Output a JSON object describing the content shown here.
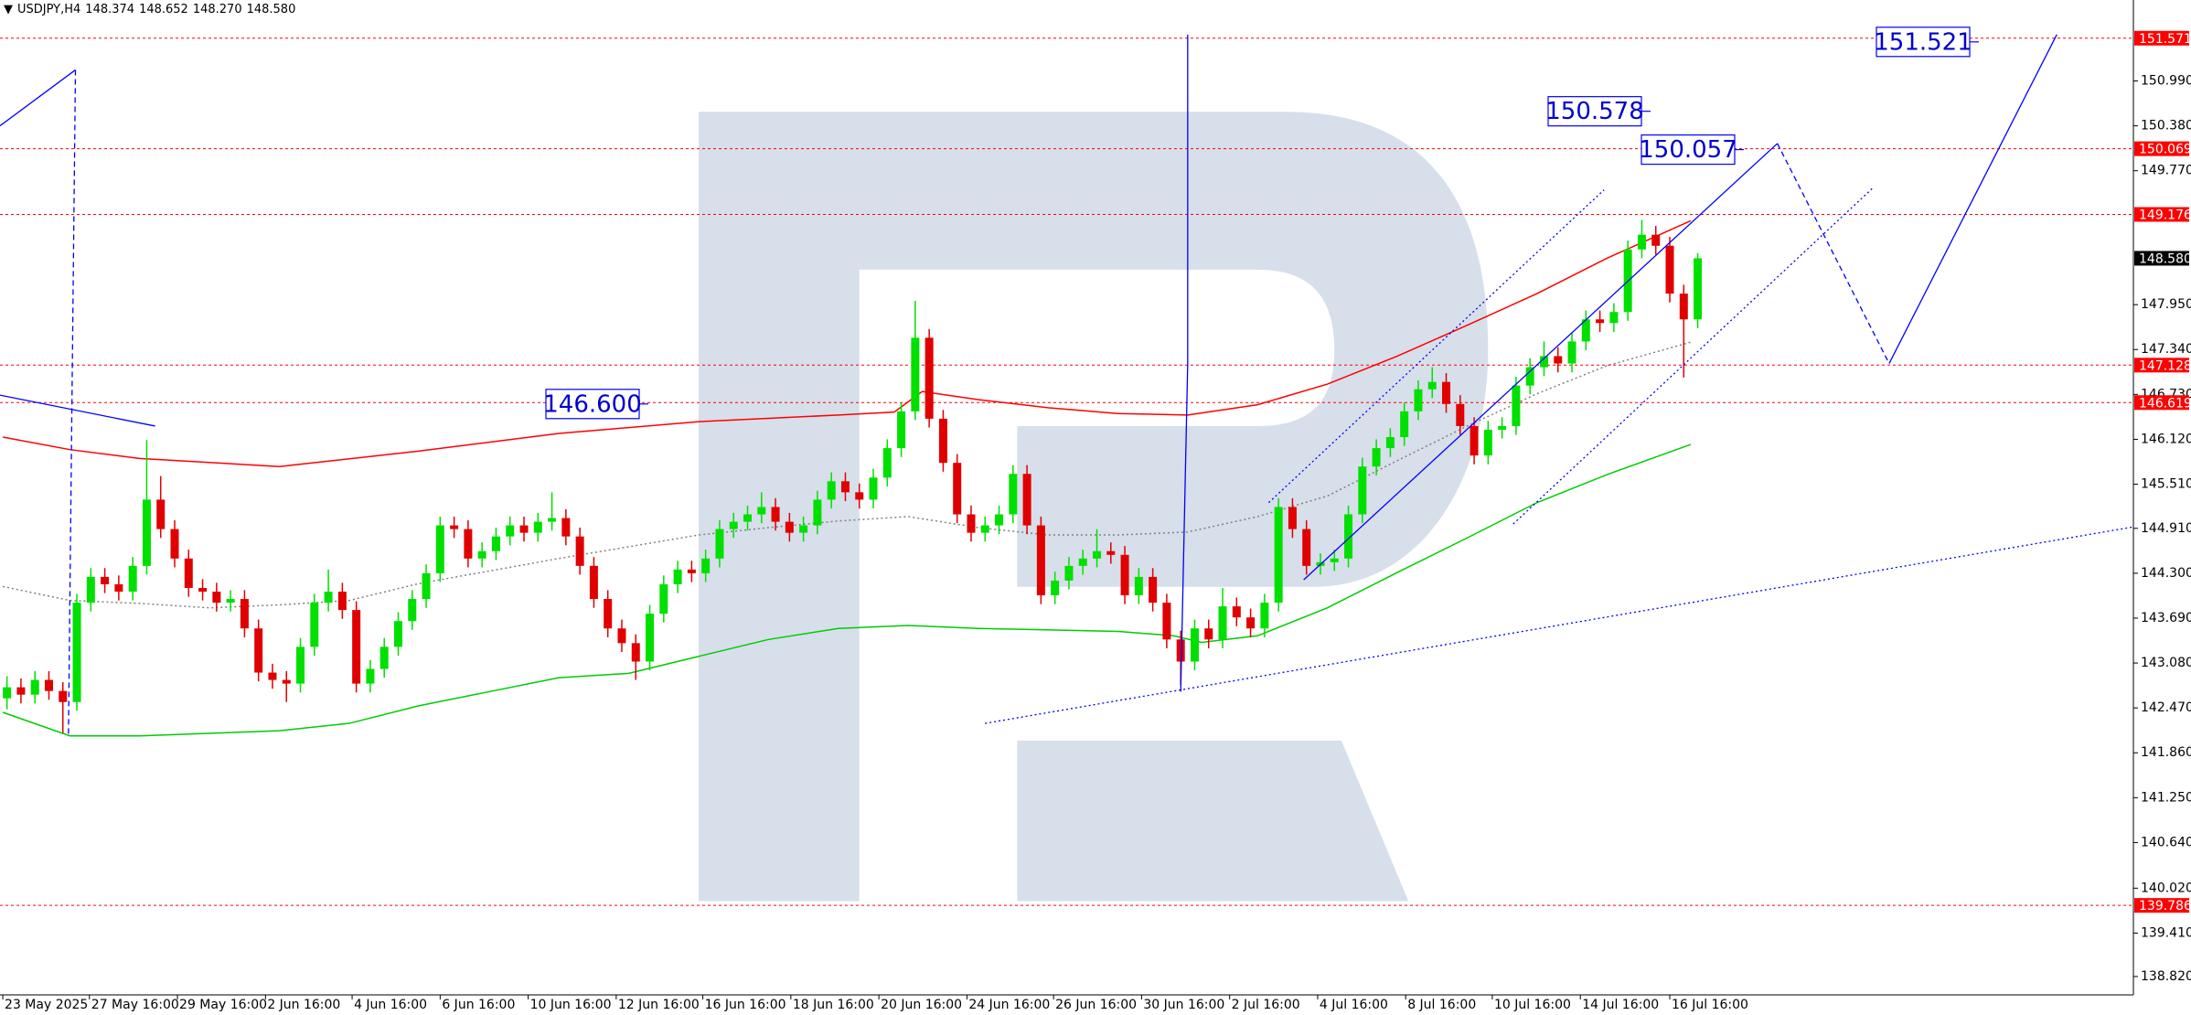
{
  "chart_data": {
    "type": "candlestick",
    "title": "USDJPY,H4",
    "quote": [
      "148.374",
      "148.652",
      "148.270",
      "148.580"
    ],
    "bull_color": "#00e000",
    "bear_color": "#e00000",
    "grid": false,
    "xlim": [
      -0.5,
      152.18
    ],
    "ylim": [
      138.57,
      152.09
    ],
    "xticks": [
      {
        "value": -0.3,
        "label": "23 May 2025"
      },
      {
        "value": 5.9,
        "label": "27 May 16:00"
      },
      {
        "value": 12.2,
        "label": "29 May 16:00"
      },
      {
        "value": 18.5,
        "label": "2 Jun 16:00"
      },
      {
        "value": 24.7,
        "label": "4 Jun 16:00"
      },
      {
        "value": 31,
        "label": "6 Jun 16:00"
      },
      {
        "value": 37.3,
        "label": "10 Jun 16:00"
      },
      {
        "value": 43.6,
        "label": "12 Jun 16:00"
      },
      {
        "value": 49.8,
        "label": "16 Jun 16:00"
      },
      {
        "value": 56.1,
        "label": "18 Jun 16:00"
      },
      {
        "value": 62.4,
        "label": "20 Jun 16:00"
      },
      {
        "value": 68.7,
        "label": "24 Jun 16:00"
      },
      {
        "value": 74.9,
        "label": "26 Jun 16:00"
      },
      {
        "value": 81.2,
        "label": "30 Jun 16:00"
      },
      {
        "value": 87.5,
        "label": "2 Jul 16:00"
      },
      {
        "value": 93.8,
        "label": "4 Jul 16:00"
      },
      {
        "value": 100.1,
        "label": "8 Jul 16:00"
      },
      {
        "value": 106.3,
        "label": "10 Jul 16:00"
      },
      {
        "value": 112.6,
        "label": "14 Jul 16:00"
      },
      {
        "value": 119,
        "label": "16 Jul 16:00"
      }
    ],
    "yticks": [
      {
        "value": 150.99,
        "label": "150.990"
      },
      {
        "value": 150.38,
        "label": "150.380"
      },
      {
        "value": 149.77,
        "label": "149.770"
      },
      {
        "value": 147.95,
        "label": "147.950"
      },
      {
        "value": 147.34,
        "label": "147.340"
      },
      {
        "value": 146.73,
        "label": "146.730"
      },
      {
        "value": 146.12,
        "label": "146.120"
      },
      {
        "value": 145.51,
        "label": "145.510"
      },
      {
        "value": 144.91,
        "label": "144.910"
      },
      {
        "value": 144.3,
        "label": "144.300"
      },
      {
        "value": 143.69,
        "label": "143.690"
      },
      {
        "value": 143.08,
        "label": "143.080"
      },
      {
        "value": 142.47,
        "label": "142.470"
      },
      {
        "value": 141.86,
        "label": "141.860"
      },
      {
        "value": 141.25,
        "label": "141.250"
      },
      {
        "value": 140.64,
        "label": "140.640"
      },
      {
        "value": 140.02,
        "label": "140.020"
      },
      {
        "value": 139.41,
        "label": "139.410"
      },
      {
        "value": 138.82,
        "label": "138.820"
      }
    ],
    "ohlc": [
      [
        142.6,
        142.9,
        142.45,
        142.75
      ],
      [
        142.75,
        142.87,
        142.53,
        142.65
      ],
      [
        142.65,
        142.97,
        142.53,
        142.85
      ],
      [
        142.85,
        142.97,
        142.58,
        142.7
      ],
      [
        142.7,
        142.82,
        142.13,
        142.55
      ],
      [
        142.55,
        144.02,
        142.43,
        143.9
      ],
      [
        143.9,
        144.37,
        143.78,
        144.25
      ],
      [
        144.25,
        144.37,
        144.03,
        144.15
      ],
      [
        144.15,
        144.27,
        143.93,
        144.05
      ],
      [
        144.05,
        144.52,
        143.93,
        144.4
      ],
      [
        144.4,
        146.11,
        144.28,
        145.3
      ],
      [
        145.3,
        145.62,
        144.78,
        144.9
      ],
      [
        144.9,
        145.02,
        144.38,
        144.5
      ],
      [
        144.5,
        144.62,
        143.98,
        144.1
      ],
      [
        144.1,
        144.22,
        143.93,
        144.05
      ],
      [
        144.05,
        144.17,
        143.78,
        143.9
      ],
      [
        143.9,
        144.07,
        143.78,
        143.95
      ],
      [
        143.95,
        144.07,
        143.43,
        143.55
      ],
      [
        143.55,
        143.67,
        142.83,
        142.95
      ],
      [
        142.95,
        143.07,
        142.73,
        142.85
      ],
      [
        142.85,
        142.97,
        142.55,
        142.8
      ],
      [
        142.8,
        143.42,
        142.68,
        143.3
      ],
      [
        143.3,
        144.02,
        143.18,
        143.9
      ],
      [
        143.9,
        144.35,
        143.78,
        144.05
      ],
      [
        144.05,
        144.17,
        143.68,
        143.8
      ],
      [
        143.8,
        143.92,
        142.68,
        142.8
      ],
      [
        142.8,
        143.12,
        142.68,
        143.0
      ],
      [
        143.0,
        143.42,
        142.88,
        143.3
      ],
      [
        143.3,
        143.77,
        143.18,
        143.65
      ],
      [
        143.65,
        144.07,
        143.53,
        143.95
      ],
      [
        143.95,
        144.42,
        143.83,
        144.3
      ],
      [
        144.3,
        145.07,
        144.18,
        144.95
      ],
      [
        144.95,
        145.07,
        144.78,
        144.9
      ],
      [
        144.9,
        145.02,
        144.38,
        144.5
      ],
      [
        144.5,
        144.72,
        144.38,
        144.6
      ],
      [
        144.6,
        144.92,
        144.48,
        144.8
      ],
      [
        144.8,
        145.07,
        144.68,
        144.95
      ],
      [
        144.95,
        145.07,
        144.73,
        144.85
      ],
      [
        144.85,
        145.12,
        144.73,
        145.0
      ],
      [
        145.0,
        145.4,
        144.88,
        145.05
      ],
      [
        145.05,
        145.17,
        144.68,
        144.8
      ],
      [
        144.8,
        144.92,
        144.28,
        144.4
      ],
      [
        144.4,
        144.52,
        143.83,
        143.95
      ],
      [
        143.95,
        144.07,
        143.43,
        143.55
      ],
      [
        143.55,
        143.67,
        143.23,
        143.35
      ],
      [
        143.35,
        143.47,
        142.85,
        143.1
      ],
      [
        143.1,
        143.87,
        142.98,
        143.75
      ],
      [
        143.75,
        144.27,
        143.63,
        144.15
      ],
      [
        144.15,
        144.47,
        144.03,
        144.35
      ],
      [
        144.35,
        144.47,
        144.18,
        144.3
      ],
      [
        144.3,
        144.62,
        144.18,
        144.5
      ],
      [
        144.5,
        145.02,
        144.38,
        144.9
      ],
      [
        144.9,
        145.12,
        144.78,
        145.0
      ],
      [
        145.0,
        145.22,
        144.88,
        145.1
      ],
      [
        145.1,
        145.4,
        144.98,
        145.2
      ],
      [
        145.2,
        145.32,
        144.88,
        145.0
      ],
      [
        145.0,
        145.12,
        144.73,
        144.85
      ],
      [
        144.85,
        145.07,
        144.73,
        144.95
      ],
      [
        144.95,
        145.42,
        144.83,
        145.3
      ],
      [
        145.3,
        145.67,
        145.18,
        145.55
      ],
      [
        145.55,
        145.67,
        145.28,
        145.4
      ],
      [
        145.4,
        145.52,
        145.18,
        145.3
      ],
      [
        145.3,
        145.72,
        145.18,
        145.6
      ],
      [
        145.6,
        146.12,
        145.48,
        146.0
      ],
      [
        146.0,
        146.62,
        145.88,
        146.5
      ],
      [
        146.5,
        148.0,
        146.38,
        147.5
      ],
      [
        147.5,
        147.62,
        146.28,
        146.4
      ],
      [
        146.4,
        146.52,
        145.68,
        145.8
      ],
      [
        145.8,
        145.92,
        144.98,
        145.1
      ],
      [
        145.1,
        145.22,
        144.73,
        144.85
      ],
      [
        144.85,
        145.07,
        144.73,
        144.95
      ],
      [
        144.95,
        145.22,
        144.83,
        145.1
      ],
      [
        145.1,
        145.77,
        144.98,
        145.65
      ],
      [
        145.65,
        145.77,
        144.83,
        144.95
      ],
      [
        144.95,
        145.07,
        143.88,
        144.0
      ],
      [
        144.0,
        144.32,
        143.88,
        144.2
      ],
      [
        144.2,
        144.52,
        144.08,
        144.4
      ],
      [
        144.4,
        144.62,
        144.28,
        144.5
      ],
      [
        144.5,
        144.9,
        144.38,
        144.6
      ],
      [
        144.6,
        144.72,
        144.43,
        144.55
      ],
      [
        144.55,
        144.67,
        143.88,
        144.0
      ],
      [
        144.0,
        144.37,
        143.88,
        144.25
      ],
      [
        144.25,
        144.37,
        143.78,
        143.9
      ],
      [
        143.9,
        144.02,
        143.28,
        143.4
      ],
      [
        143.4,
        143.52,
        142.78,
        143.1
      ],
      [
        143.1,
        143.67,
        142.98,
        143.55
      ],
      [
        143.55,
        143.67,
        143.28,
        143.4
      ],
      [
        143.4,
        144.1,
        143.28,
        143.85
      ],
      [
        143.85,
        143.97,
        143.58,
        143.7
      ],
      [
        143.7,
        143.82,
        143.43,
        143.55
      ],
      [
        143.55,
        144.02,
        143.43,
        143.9
      ],
      [
        143.9,
        145.32,
        143.78,
        145.2
      ],
      [
        145.2,
        145.32,
        144.78,
        144.9
      ],
      [
        144.9,
        145.02,
        144.28,
        144.4
      ],
      [
        144.4,
        144.57,
        144.28,
        144.45
      ],
      [
        144.45,
        144.62,
        144.33,
        144.5
      ],
      [
        144.5,
        145.22,
        144.38,
        145.1
      ],
      [
        145.1,
        145.87,
        144.98,
        145.75
      ],
      [
        145.75,
        146.12,
        145.63,
        146.0
      ],
      [
        146.0,
        146.27,
        145.88,
        146.15
      ],
      [
        146.15,
        146.62,
        146.03,
        146.5
      ],
      [
        146.5,
        146.92,
        146.38,
        146.8
      ],
      [
        146.8,
        147.1,
        146.68,
        146.9
      ],
      [
        146.9,
        147.02,
        146.48,
        146.6
      ],
      [
        146.6,
        146.72,
        146.18,
        146.3
      ],
      [
        146.3,
        146.42,
        145.78,
        145.9
      ],
      [
        145.9,
        146.37,
        145.78,
        146.25
      ],
      [
        146.25,
        146.42,
        146.13,
        146.3
      ],
      [
        146.3,
        146.97,
        146.18,
        146.85
      ],
      [
        146.85,
        147.22,
        146.73,
        147.1
      ],
      [
        147.1,
        147.45,
        146.98,
        147.25
      ],
      [
        147.25,
        147.37,
        147.03,
        147.15
      ],
      [
        147.15,
        147.57,
        147.03,
        147.45
      ],
      [
        147.45,
        147.87,
        147.33,
        147.75
      ],
      [
        147.75,
        147.87,
        147.58,
        147.7
      ],
      [
        147.7,
        147.97,
        147.58,
        147.85
      ],
      [
        147.85,
        148.82,
        147.73,
        148.7
      ],
      [
        148.7,
        149.1,
        148.58,
        148.9
      ],
      [
        148.9,
        149.02,
        148.63,
        148.75
      ],
      [
        148.75,
        148.87,
        147.98,
        148.1
      ],
      [
        148.1,
        148.22,
        146.96,
        147.75
      ],
      [
        147.75,
        148.65,
        147.63,
        148.58
      ]
    ],
    "series": [
      {
        "color": "#ff0000",
        "dash": "solid",
        "x": [
          -0.3,
          4.5,
          9.5,
          19.5,
          29.5,
          39.5,
          49.5,
          59.5,
          63.5,
          65.5,
          69.5,
          74.5,
          79.5,
          84.5,
          89.5,
          94.5,
          99.5,
          104.5,
          109.5,
          114.5,
          120.5
        ],
        "values": [
          146.15,
          145.98,
          145.86,
          145.75,
          145.96,
          146.2,
          146.36,
          146.45,
          146.49,
          146.77,
          146.66,
          146.55,
          146.47,
          146.45,
          146.59,
          146.87,
          147.25,
          147.67,
          148.1,
          148.58,
          149.09
        ]
      },
      {
        "color": "#00cc00",
        "dash": "solid",
        "x": [
          -0.3,
          4.5,
          9.5,
          19.5,
          24.5,
          29.5,
          34.5,
          39.5,
          44.5,
          49.5,
          54.5,
          59.5,
          64.5,
          69.5,
          79.5,
          83.5,
          85.5,
          89.5,
          94.5,
          99.5,
          104.5,
          109.5,
          114.5,
          120.5
        ],
        "values": [
          142.41,
          142.09,
          142.09,
          142.16,
          142.26,
          142.5,
          142.69,
          142.88,
          142.94,
          143.17,
          143.4,
          143.55,
          143.59,
          143.55,
          143.51,
          143.45,
          143.36,
          143.45,
          143.83,
          144.31,
          144.78,
          145.26,
          145.64,
          146.05
        ]
      },
      {
        "color": "#808080",
        "dash": "dotted",
        "x": [
          -0.3,
          4.5,
          9.5,
          14.5,
          19.5,
          24.5,
          29.5,
          39.5,
          49.5,
          54.5,
          59.5,
          64.5,
          69.5,
          74.5,
          79.5,
          84.5,
          89.5,
          94.5,
          99.5,
          104.5,
          109.5,
          114.5,
          120.5
        ],
        "values": [
          144.12,
          143.93,
          143.89,
          143.83,
          143.87,
          143.93,
          144.16,
          144.5,
          144.82,
          144.92,
          145.01,
          145.07,
          144.92,
          144.82,
          144.82,
          144.86,
          145.07,
          145.35,
          145.83,
          146.3,
          146.74,
          147.12,
          147.44
        ]
      }
    ],
    "drawing_color": "#0000ff",
    "drawings": [
      {
        "dash": "solid",
        "x": [
          -0.5,
          4.9
        ],
        "values": [
          150.38,
          151.14
        ]
      },
      {
        "dash": "dashed",
        "x": [
          4.9,
          4.4
        ],
        "values": [
          151.14,
          142.12
        ]
      },
      {
        "dash": "solid",
        "x": [
          -0.5,
          10.6
        ],
        "values": [
          146.72,
          146.3
        ]
      },
      {
        "dash": "solid",
        "x": [
          84.5,
          84.5,
          84.0
        ],
        "values": [
          151.62,
          147.15,
          142.69
        ]
      },
      {
        "dash": "dotted",
        "x": [
          70.0,
          152.2
        ],
        "values": [
          142.26,
          144.93
        ]
      },
      {
        "dash": "dotted",
        "x": [
          90.3,
          114.3
        ],
        "values": [
          145.26,
          149.51
        ]
      },
      {
        "dash": "dotted",
        "x": [
          107.8,
          133.5
        ],
        "values": [
          144.97,
          149.53
        ]
      },
      {
        "dash": "solid",
        "x": [
          92.8,
          126.7
        ],
        "values": [
          144.21,
          150.14
        ]
      },
      {
        "dash": "dashed",
        "x": [
          126.7,
          134.7
        ],
        "values": [
          150.14,
          147.15
        ]
      },
      {
        "dash": "solid",
        "x": [
          134.7,
          146.7
        ],
        "values": [
          147.15,
          151.62
        ]
      }
    ],
    "level_color": "#ff0000",
    "levels": [
      151.571,
      150.069,
      149.176,
      147.128,
      146.619,
      139.786
    ],
    "last": {
      "value": 148.58,
      "label": "148.580"
    },
    "annotations": [
      {
        "value": 146.6,
        "label": "146.600"
      },
      {
        "value": 150.578,
        "label": "150.578"
      },
      {
        "value": 150.057,
        "label": "150.057"
      },
      {
        "value": 151.521,
        "label": "151.521"
      }
    ]
  }
}
